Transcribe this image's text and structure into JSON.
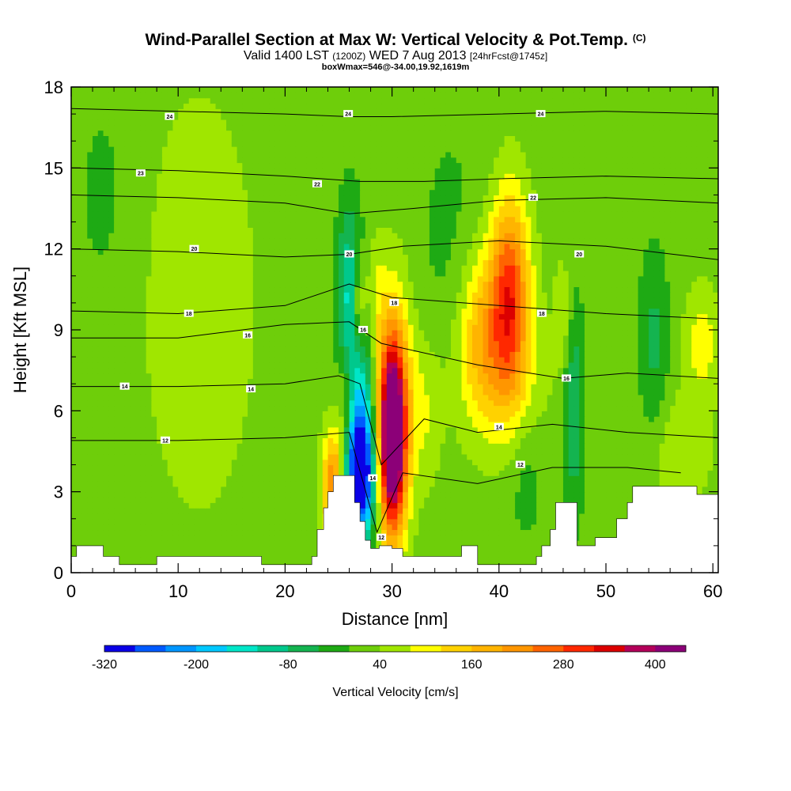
{
  "title": {
    "main": "Wind-Parallel Section at Max W: Vertical Velocity & Pot.Temp.",
    "copyright": "(C)",
    "valid_prefix": "Valid 1400 LST",
    "valid_utc": "(1200Z)",
    "valid_date": "WED 7 Aug 2013",
    "forecast": "[24hrFcst@1745z]",
    "box": "boxWmax=546@-34.00,19.92,1619m"
  },
  "chart_data": {
    "type": "heatmap",
    "xlabel": "Distance [nm]",
    "ylabel": "Height [Kft MSL]",
    "xlim": [
      0,
      60.5
    ],
    "ylim": [
      0,
      18
    ],
    "x_ticks": [
      0,
      10,
      20,
      30,
      40,
      50,
      60
    ],
    "y_ticks": [
      0,
      3,
      6,
      9,
      12,
      15,
      18
    ],
    "colorbar": {
      "label": "Vertical Velocity [cm/s]",
      "tick_labels": [
        "-320",
        "-200",
        "-80",
        "40",
        "160",
        "280",
        "400"
      ],
      "tick_values": [
        -320,
        -200,
        -80,
        40,
        160,
        280,
        400
      ],
      "min": -320,
      "step": 40,
      "colors": [
        "#0a00e6",
        "#005aff",
        "#0096ff",
        "#00c8ff",
        "#00e6c8",
        "#00c88c",
        "#14b450",
        "#1eaa14",
        "#6ece0a",
        "#a0e600",
        "#ffff00",
        "#ffd200",
        "#ffb400",
        "#ff9600",
        "#ff6400",
        "#ff2800",
        "#dc0000",
        "#b4005a",
        "#8c0078"
      ]
    },
    "background_value": 20,
    "terrain_kft": [
      [
        0,
        0.6
      ],
      [
        0.5,
        1.0
      ],
      [
        2.5,
        1.0
      ],
      [
        3.0,
        0.6
      ],
      [
        4.3,
        0.6
      ],
      [
        4.5,
        0.3
      ],
      [
        7.8,
        0.3
      ],
      [
        8.0,
        0.6
      ],
      [
        17.5,
        0.6
      ],
      [
        17.8,
        0.3
      ],
      [
        22.2,
        0.3
      ],
      [
        22.5,
        0.6
      ],
      [
        23.0,
        1.6
      ],
      [
        23.6,
        2.4
      ],
      [
        24.0,
        3.0
      ],
      [
        24.5,
        3.6
      ],
      [
        26.0,
        3.6
      ],
      [
        26.5,
        2.6
      ],
      [
        27.0,
        1.9
      ],
      [
        27.5,
        1.2
      ],
      [
        28.0,
        0.9
      ],
      [
        28.8,
        1.0
      ],
      [
        29.5,
        1.0
      ],
      [
        30.0,
        0.9
      ],
      [
        31.0,
        0.6
      ],
      [
        36.0,
        0.6
      ],
      [
        36.5,
        1.0
      ],
      [
        37.5,
        1.0
      ],
      [
        38.0,
        0.3
      ],
      [
        43.0,
        0.3
      ],
      [
        43.5,
        0.6
      ],
      [
        44.0,
        1.0
      ],
      [
        44.8,
        1.6
      ],
      [
        45.3,
        2.6
      ],
      [
        47.0,
        2.6
      ],
      [
        47.3,
        1.0
      ],
      [
        48.5,
        1.0
      ],
      [
        49.0,
        1.3
      ],
      [
        50.5,
        1.3
      ],
      [
        51.0,
        2.0
      ],
      [
        52.0,
        2.6
      ],
      [
        52.5,
        3.2
      ],
      [
        58.0,
        3.2
      ],
      [
        58.5,
        2.9
      ],
      [
        60.5,
        2.9
      ]
    ],
    "vv_features": [
      {
        "x": 30.0,
        "y": 5.0,
        "sx": 0.9,
        "sy": 2.5,
        "v": 460
      },
      {
        "x": 30.3,
        "y": 6.5,
        "sx": 1.2,
        "sy": 3.2,
        "v": 120
      },
      {
        "x": 27.0,
        "y": 3.6,
        "sx": 1.0,
        "sy": 1.6,
        "v": -330
      },
      {
        "x": 26.9,
        "y": 6.0,
        "sx": 1.1,
        "sy": 2.8,
        "v": -150
      },
      {
        "x": 26.0,
        "y": 10.3,
        "sx": 0.8,
        "sy": 2.4,
        "v": -140
      },
      {
        "x": 24.5,
        "y": 3.2,
        "sx": 0.7,
        "sy": 1.5,
        "v": 230
      },
      {
        "x": 25.7,
        "y": 6.0,
        "sx": 0.6,
        "sy": 2.0,
        "v": 110
      },
      {
        "x": 26.9,
        "y": 9.8,
        "sx": 0.5,
        "sy": 1.3,
        "v": 130
      },
      {
        "x": 28.5,
        "y": 10.2,
        "sx": 0.7,
        "sy": 1.5,
        "v": 60
      },
      {
        "x": 41.0,
        "y": 10.3,
        "sx": 1.3,
        "sy": 2.6,
        "v": 270
      },
      {
        "x": 38.3,
        "y": 9.0,
        "sx": 1.5,
        "sy": 2.2,
        "v": 120
      },
      {
        "x": 40.0,
        "y": 7.2,
        "sx": 3.0,
        "sy": 2.0,
        "v": 70
      },
      {
        "x": 47.0,
        "y": 6.2,
        "sx": 0.7,
        "sy": 2.8,
        "v": -100
      },
      {
        "x": 46.0,
        "y": 9.5,
        "sx": 0.6,
        "sy": 1.5,
        "v": 60
      },
      {
        "x": 54.5,
        "y": 8.5,
        "sx": 1.0,
        "sy": 2.5,
        "v": -70
      },
      {
        "x": 59.0,
        "y": 8.5,
        "sx": 1.2,
        "sy": 1.5,
        "v": 80
      },
      {
        "x": 42.5,
        "y": 3.5,
        "sx": 1.2,
        "sy": 1.8,
        "v": -40
      },
      {
        "x": 33.0,
        "y": 6.0,
        "sx": 1.2,
        "sy": 2.0,
        "v": 60
      },
      {
        "x": 57.0,
        "y": 4.5,
        "sx": 2.0,
        "sy": 1.5,
        "v": 55
      },
      {
        "x": 35.5,
        "y": 12.0,
        "sx": 2.5,
        "sy": 4.0,
        "v": -30
      },
      {
        "x": 12.0,
        "y": 10.0,
        "sx": 4.0,
        "sy": 6.0,
        "v": 45
      },
      {
        "x": 3.0,
        "y": 14.0,
        "sx": 2.0,
        "sy": 3.0,
        "v": -30
      }
    ],
    "isentropes": [
      {
        "label": "24",
        "points": [
          [
            0,
            17.2
          ],
          [
            10,
            17.1
          ],
          [
            20,
            17.0
          ],
          [
            26,
            16.9
          ],
          [
            30,
            16.9
          ],
          [
            40,
            17.0
          ],
          [
            50,
            17.1
          ],
          [
            60.5,
            17.0
          ]
        ],
        "label_at": [
          [
            9.2,
            16.9
          ],
          [
            25.9,
            17.0
          ],
          [
            43.9,
            17.0
          ]
        ]
      },
      {
        "label": "23",
        "points": [
          [
            0,
            15.0
          ],
          [
            10,
            14.9
          ],
          [
            20,
            14.7
          ],
          [
            27,
            14.5
          ],
          [
            33,
            14.5
          ],
          [
            40,
            14.6
          ],
          [
            50,
            14.7
          ],
          [
            60.5,
            14.6
          ]
        ],
        "label_at": [
          [
            6.5,
            14.8
          ]
        ]
      },
      {
        "label": "22",
        "points": [
          [
            0,
            14.0
          ],
          [
            10,
            13.9
          ],
          [
            20,
            13.7
          ],
          [
            26,
            13.3
          ],
          [
            32,
            13.5
          ],
          [
            40,
            13.8
          ],
          [
            50,
            13.9
          ],
          [
            60.5,
            13.7
          ]
        ],
        "label_at": [
          [
            23.0,
            14.4
          ],
          [
            43.2,
            13.9
          ]
        ]
      },
      {
        "label": "20",
        "points": [
          [
            0,
            12.0
          ],
          [
            10,
            11.9
          ],
          [
            20,
            11.7
          ],
          [
            26,
            11.8
          ],
          [
            31,
            12.1
          ],
          [
            40,
            12.3
          ],
          [
            50,
            12.1
          ],
          [
            60.5,
            11.6
          ]
        ],
        "label_at": [
          [
            11.5,
            12.0
          ],
          [
            26.0,
            11.8
          ],
          [
            47.5,
            11.8
          ]
        ]
      },
      {
        "label": "18",
        "points": [
          [
            0,
            9.7
          ],
          [
            10,
            9.6
          ],
          [
            20,
            9.9
          ],
          [
            26,
            10.7
          ],
          [
            30,
            10.2
          ],
          [
            40,
            9.9
          ],
          [
            50,
            9.6
          ],
          [
            60.5,
            9.4
          ]
        ],
        "label_at": [
          [
            11.0,
            9.6
          ],
          [
            30.2,
            10.0
          ],
          [
            44.0,
            9.6
          ]
        ]
      },
      {
        "label": "16",
        "points": [
          [
            0,
            8.7
          ],
          [
            10,
            8.7
          ],
          [
            20,
            9.2
          ],
          [
            26,
            9.3
          ],
          [
            29,
            8.5
          ],
          [
            38,
            7.7
          ],
          [
            46,
            7.2
          ],
          [
            52,
            7.4
          ],
          [
            60.5,
            7.2
          ]
        ],
        "label_at": [
          [
            16.5,
            8.8
          ],
          [
            27.3,
            9.0
          ],
          [
            46.3,
            7.2
          ]
        ]
      },
      {
        "label": "14",
        "points": [
          [
            0,
            6.9
          ],
          [
            10,
            6.9
          ],
          [
            20,
            7.0
          ],
          [
            25,
            7.3
          ],
          [
            27,
            7.0
          ],
          [
            29,
            4.0
          ],
          [
            33,
            5.7
          ],
          [
            38,
            5.2
          ],
          [
            45,
            5.5
          ],
          [
            52,
            5.2
          ],
          [
            60.5,
            5.0
          ]
        ],
        "label_at": [
          [
            5.0,
            6.9
          ],
          [
            16.8,
            6.8
          ],
          [
            28.2,
            3.5
          ],
          [
            40.0,
            5.4
          ]
        ]
      },
      {
        "label": "12",
        "points": [
          [
            0,
            4.9
          ],
          [
            10,
            4.9
          ],
          [
            20,
            5.0
          ],
          [
            26,
            5.2
          ],
          [
            28.6,
            1.5
          ],
          [
            31,
            3.7
          ],
          [
            38,
            3.3
          ],
          [
            45,
            3.9
          ],
          [
            52,
            3.9
          ],
          [
            57,
            3.7
          ]
        ],
        "label_at": [
          [
            8.8,
            4.9
          ],
          [
            29.0,
            1.3
          ],
          [
            42.0,
            4.0
          ]
        ]
      }
    ]
  }
}
